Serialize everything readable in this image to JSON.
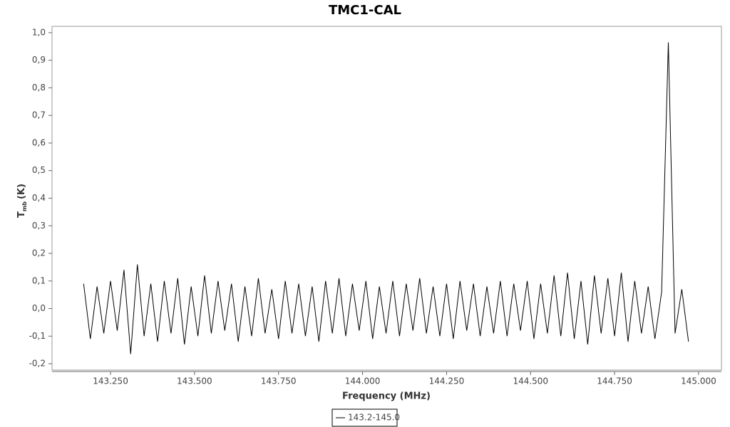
{
  "chart_data": {
    "type": "line",
    "title": "TMC1-CAL",
    "x_label": "Frequency (MHz)",
    "y_label": {
      "main": "T",
      "sub": "mb",
      "unit": "(K)"
    },
    "xlim": [
      143.076,
      145.068
    ],
    "ylim": [
      -0.223,
      1.023
    ],
    "xticks": [
      {
        "value": 143.25,
        "label": "143.250"
      },
      {
        "value": 143.5,
        "label": "143.500"
      },
      {
        "value": 143.75,
        "label": "143.750"
      },
      {
        "value": 144.0,
        "label": "144.000"
      },
      {
        "value": 144.25,
        "label": "144.250"
      },
      {
        "value": 144.5,
        "label": "144.500"
      },
      {
        "value": 144.75,
        "label": "144.750"
      },
      {
        "value": 145.0,
        "label": "145.000"
      }
    ],
    "yticks": [
      {
        "value": -0.2,
        "label": "-0,2"
      },
      {
        "value": -0.1,
        "label": "-0,1"
      },
      {
        "value": 0,
        "label": "0,0"
      },
      {
        "value": 0.1,
        "label": "0,1"
      },
      {
        "value": 0.2,
        "label": "0,2"
      },
      {
        "value": 0.3,
        "label": "0,3"
      },
      {
        "value": 0.4,
        "label": "0,4"
      },
      {
        "value": 0.5,
        "label": "0,5"
      },
      {
        "value": 0.6,
        "label": "0,6"
      },
      {
        "value": 0.7,
        "label": "0,7"
      },
      {
        "value": 0.8,
        "label": "0,8"
      },
      {
        "value": 0.9,
        "label": "0,9"
      },
      {
        "value": 1.0,
        "label": "1,0"
      }
    ],
    "series": [
      {
        "name": "143.2-145.0",
        "color": "#000000",
        "x": [
          143.17,
          143.19,
          143.21,
          143.23,
          143.25,
          143.27,
          143.29,
          143.31,
          143.33,
          143.35,
          143.37,
          143.39,
          143.41,
          143.43,
          143.45,
          143.47,
          143.49,
          143.51,
          143.53,
          143.55,
          143.57,
          143.59,
          143.61,
          143.63,
          143.65,
          143.67,
          143.69,
          143.71,
          143.73,
          143.75,
          143.77,
          143.79,
          143.81,
          143.83,
          143.85,
          143.87,
          143.89,
          143.91,
          143.93,
          143.95,
          143.97,
          143.99,
          144.01,
          144.03,
          144.05,
          144.07,
          144.09,
          144.11,
          144.13,
          144.15,
          144.17,
          144.19,
          144.21,
          144.23,
          144.25,
          144.27,
          144.29,
          144.31,
          144.33,
          144.35,
          144.37,
          144.39,
          144.41,
          144.43,
          144.45,
          144.47,
          144.49,
          144.51,
          144.53,
          144.55,
          144.57,
          144.59,
          144.61,
          144.63,
          144.65,
          144.67,
          144.69,
          144.71,
          144.73,
          144.75,
          144.77,
          144.79,
          144.81,
          144.83,
          144.85,
          144.87,
          144.89,
          144.91,
          144.93,
          144.95,
          144.97
        ],
        "values": [
          0.09,
          -0.11,
          0.08,
          -0.09,
          0.1,
          -0.08,
          0.14,
          -0.165,
          0.16,
          -0.1,
          0.09,
          -0.12,
          0.1,
          -0.09,
          0.11,
          -0.13,
          0.08,
          -0.1,
          0.12,
          -0.09,
          0.1,
          -0.08,
          0.09,
          -0.12,
          0.08,
          -0.1,
          0.11,
          -0.09,
          0.07,
          -0.11,
          0.1,
          -0.09,
          0.09,
          -0.1,
          0.08,
          -0.12,
          0.1,
          -0.09,
          0.11,
          -0.1,
          0.09,
          -0.08,
          0.1,
          -0.11,
          0.08,
          -0.09,
          0.1,
          -0.1,
          0.09,
          -0.08,
          0.11,
          -0.09,
          0.08,
          -0.1,
          0.09,
          -0.11,
          0.1,
          -0.08,
          0.09,
          -0.1,
          0.08,
          -0.09,
          0.1,
          -0.1,
          0.09,
          -0.08,
          0.1,
          -0.11,
          0.09,
          -0.09,
          0.12,
          -0.1,
          0.13,
          -0.11,
          0.1,
          -0.13,
          0.12,
          -0.09,
          0.11,
          -0.1,
          0.13,
          -0.12,
          0.1,
          -0.09,
          0.08,
          -0.11,
          0.06,
          0.965,
          -0.09,
          0.07,
          -0.12
        ]
      }
    ]
  }
}
